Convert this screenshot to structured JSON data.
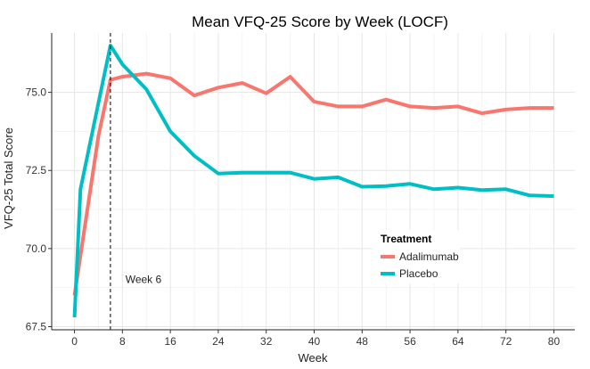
{
  "chart_data": {
    "type": "line",
    "title": "Mean VFQ-25 Score by Week (LOCF)",
    "xlabel": "Week",
    "ylabel": "VFQ-25 Total Score",
    "xlim": [
      -3.8,
      83.5
    ],
    "ylim": [
      67.4,
      76.9
    ],
    "x_ticks": [
      0,
      8,
      16,
      24,
      32,
      40,
      48,
      56,
      64,
      72,
      80
    ],
    "x_tick_labels": [
      "0",
      "8",
      "16",
      "24",
      "32",
      "40",
      "48",
      "56",
      "64",
      "72",
      "80"
    ],
    "y_ticks": [
      67.5,
      70.0,
      72.5,
      75.0
    ],
    "y_tick_labels": [
      "67.5",
      "70.0",
      "72.5",
      "75.0"
    ],
    "grid": true,
    "legend": {
      "title": "Treatment",
      "placement": "right-center",
      "entries": [
        "Adalimumab",
        "Placebo"
      ]
    },
    "series": [
      {
        "name": "Adalimumab",
        "color": "#F8766D",
        "x": [
          0,
          4,
          6,
          8,
          12,
          16,
          20,
          24,
          28,
          32,
          36,
          40,
          44,
          48,
          52,
          56,
          60,
          64,
          68,
          72,
          76,
          80
        ],
        "values": [
          68.5,
          73.6,
          75.4,
          75.5,
          75.6,
          75.45,
          74.9,
          75.15,
          75.3,
          74.97,
          75.5,
          74.7,
          74.55,
          74.55,
          74.77,
          74.55,
          74.5,
          74.55,
          74.33,
          74.45,
          74.5,
          74.5
        ]
      },
      {
        "name": "Placebo",
        "color": "#00BFC4",
        "x": [
          0,
          1,
          6,
          8,
          12,
          16,
          20,
          24,
          28,
          32,
          36,
          40,
          44,
          48,
          52,
          56,
          60,
          64,
          68,
          72,
          76,
          80
        ],
        "values": [
          67.8,
          71.9,
          76.5,
          75.9,
          75.1,
          73.75,
          72.97,
          72.4,
          72.43,
          72.43,
          72.43,
          72.23,
          72.28,
          71.98,
          72.0,
          72.07,
          71.9,
          71.95,
          71.87,
          71.9,
          71.7,
          71.68
        ]
      }
    ],
    "annotations": [
      {
        "type": "vline",
        "x": 6,
        "style": "dashed",
        "label": "Week 6",
        "label_x": 8.5,
        "label_y": 68.9
      }
    ]
  }
}
